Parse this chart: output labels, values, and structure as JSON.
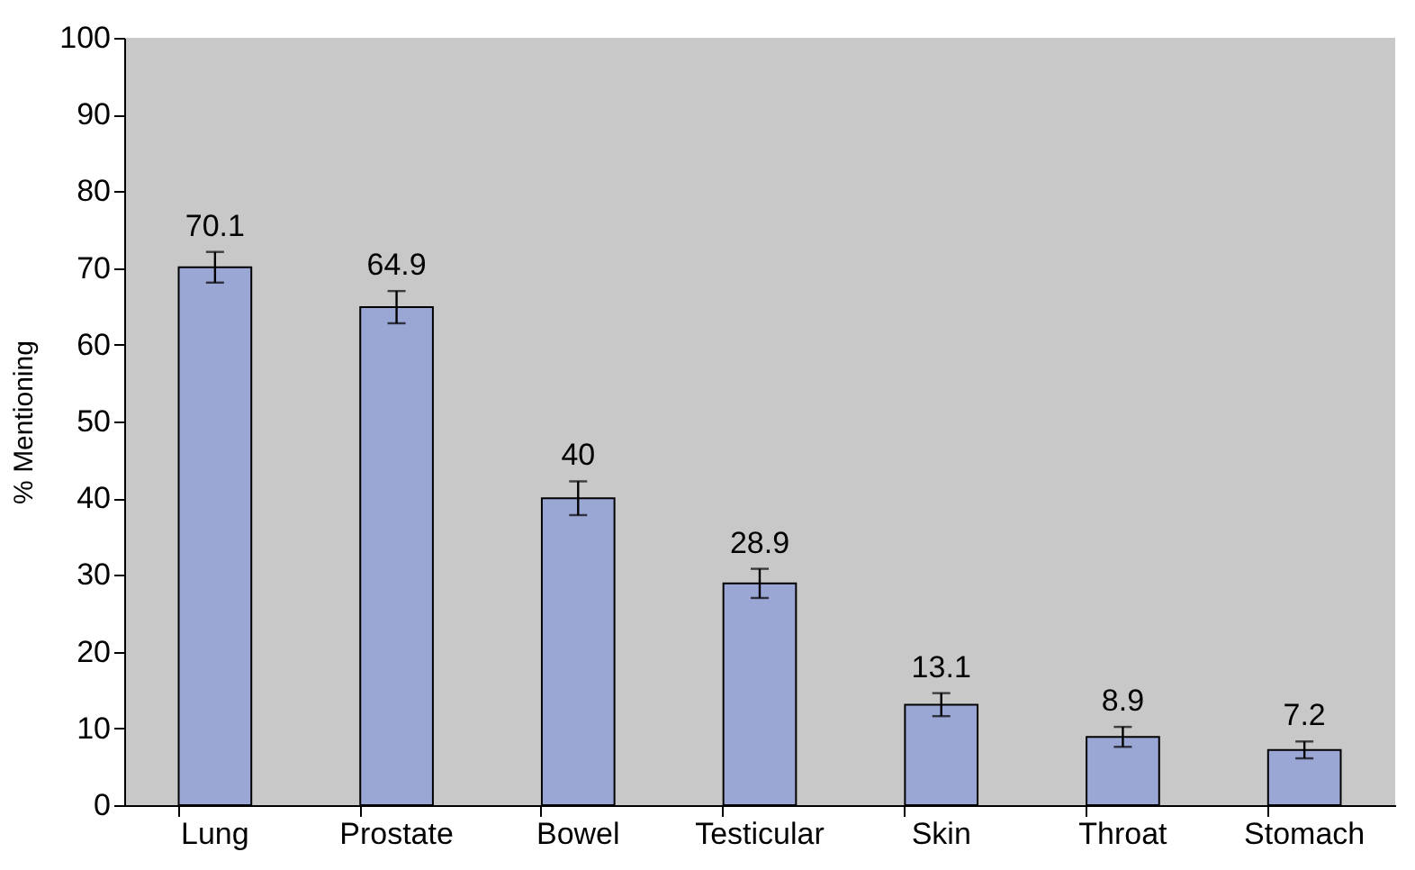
{
  "chart_data": {
    "type": "bar",
    "ylabel": "% Mentioning",
    "categories": [
      "Lung",
      "Prostate",
      "Bowel",
      "Testicular",
      "Skin",
      "Throat",
      "Stomach"
    ],
    "values": [
      70.1,
      64.9,
      40,
      28.9,
      13.1,
      8.9,
      7.2
    ],
    "errors": [
      2,
      2.1,
      2.2,
      1.9,
      1.5,
      1.3,
      1.1
    ],
    "color": "#9aa6d4",
    "ylim": [
      0,
      100
    ],
    "yticks": [
      0,
      10,
      20,
      30,
      40,
      50,
      60,
      70,
      80,
      90,
      100
    ],
    "grid": false,
    "data_labels": true
  }
}
